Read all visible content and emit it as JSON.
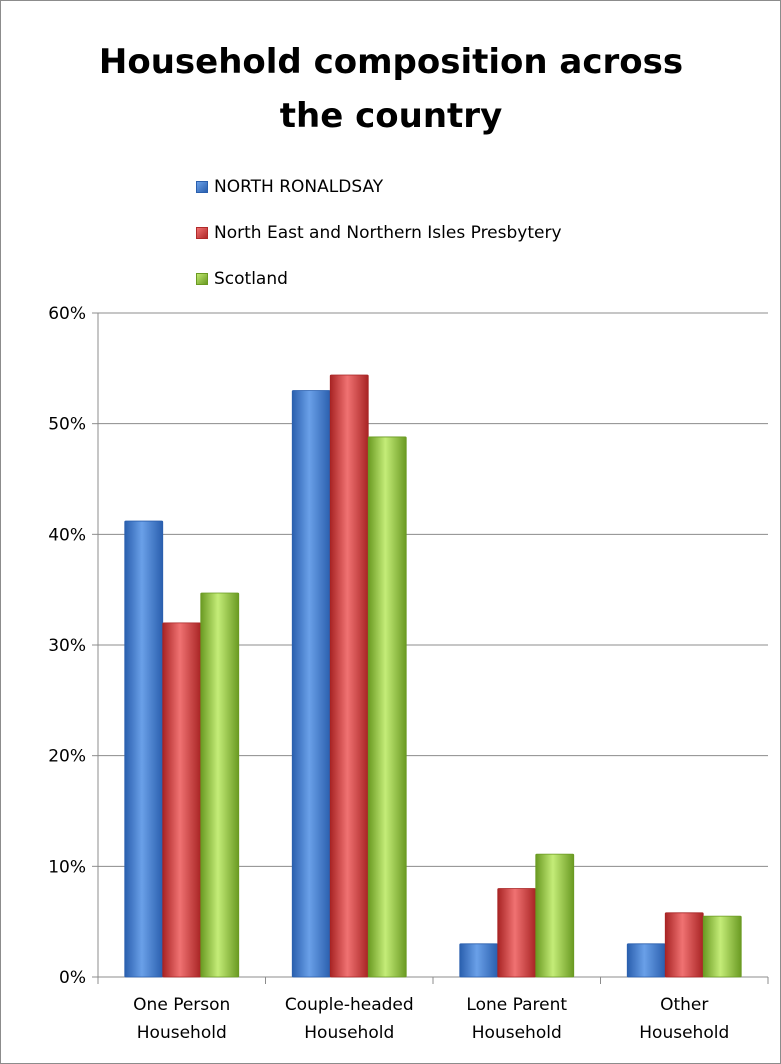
{
  "chart_data": {
    "type": "bar",
    "title": "Household composition across the country",
    "title_lines": [
      "Household composition across",
      "the country"
    ],
    "categories": [
      [
        "One Person",
        "Household"
      ],
      [
        "Couple-headed",
        "Household"
      ],
      [
        "Lone Parent",
        "Household"
      ],
      [
        "Other",
        "Household"
      ]
    ],
    "series": [
      {
        "name": "NORTH RONALDSAY",
        "color": "#3a73c9",
        "values": [
          41.2,
          53.0,
          3.0,
          3.0
        ]
      },
      {
        "name": "North East and Northern Isles Presbytery",
        "color": "#d23b3b",
        "values": [
          32.0,
          54.4,
          8.0,
          5.8
        ]
      },
      {
        "name": "Scotland",
        "color": "#8fc234",
        "values": [
          34.7,
          48.8,
          11.1,
          5.5
        ]
      }
    ],
    "ylim": [
      0,
      60
    ],
    "yticks": [
      "0%",
      "10%",
      "20%",
      "30%",
      "40%",
      "50%",
      "60%"
    ],
    "grid": true,
    "legend_position": "top"
  }
}
